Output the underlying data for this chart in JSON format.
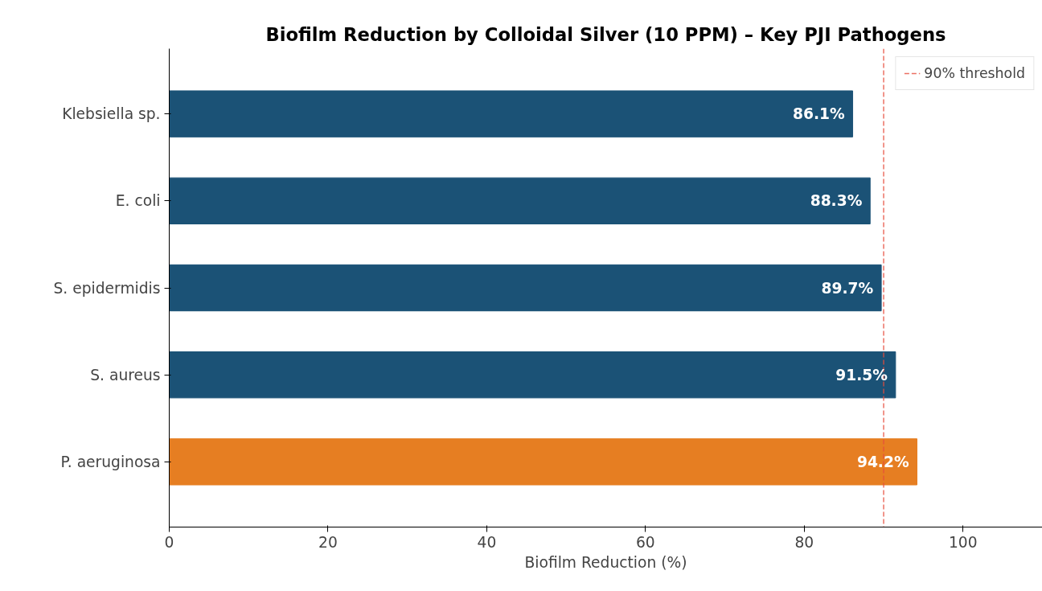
{
  "chart_data": {
    "type": "bar",
    "orientation": "horizontal",
    "title": "Biofilm Reduction by Colloidal Silver (10 PPM) – Key PJI Pathogens",
    "xlabel": "Biofilm Reduction (%)",
    "categories": [
      "Klebsiella sp.",
      "E. coli",
      "S. epidermidis",
      "S. aureus",
      "P. aeruginosa"
    ],
    "values": [
      86.1,
      88.3,
      89.7,
      91.5,
      94.2
    ],
    "colors": [
      "#1b5276",
      "#1b5276",
      "#1b5276",
      "#1b5276",
      "#e67e22"
    ],
    "value_labels": [
      "86.1%",
      "88.3%",
      "89.7%",
      "91.5%",
      "94.2%"
    ],
    "xlim": [
      0,
      110
    ],
    "xticks": [
      0,
      20,
      40,
      60,
      80,
      100
    ],
    "ref_lines": [
      {
        "axis": "x",
        "value": 90,
        "label": "90% threshold",
        "color": "#e74c3c",
        "line_style": "dashed"
      }
    ],
    "legend": "top right",
    "grid": false
  }
}
